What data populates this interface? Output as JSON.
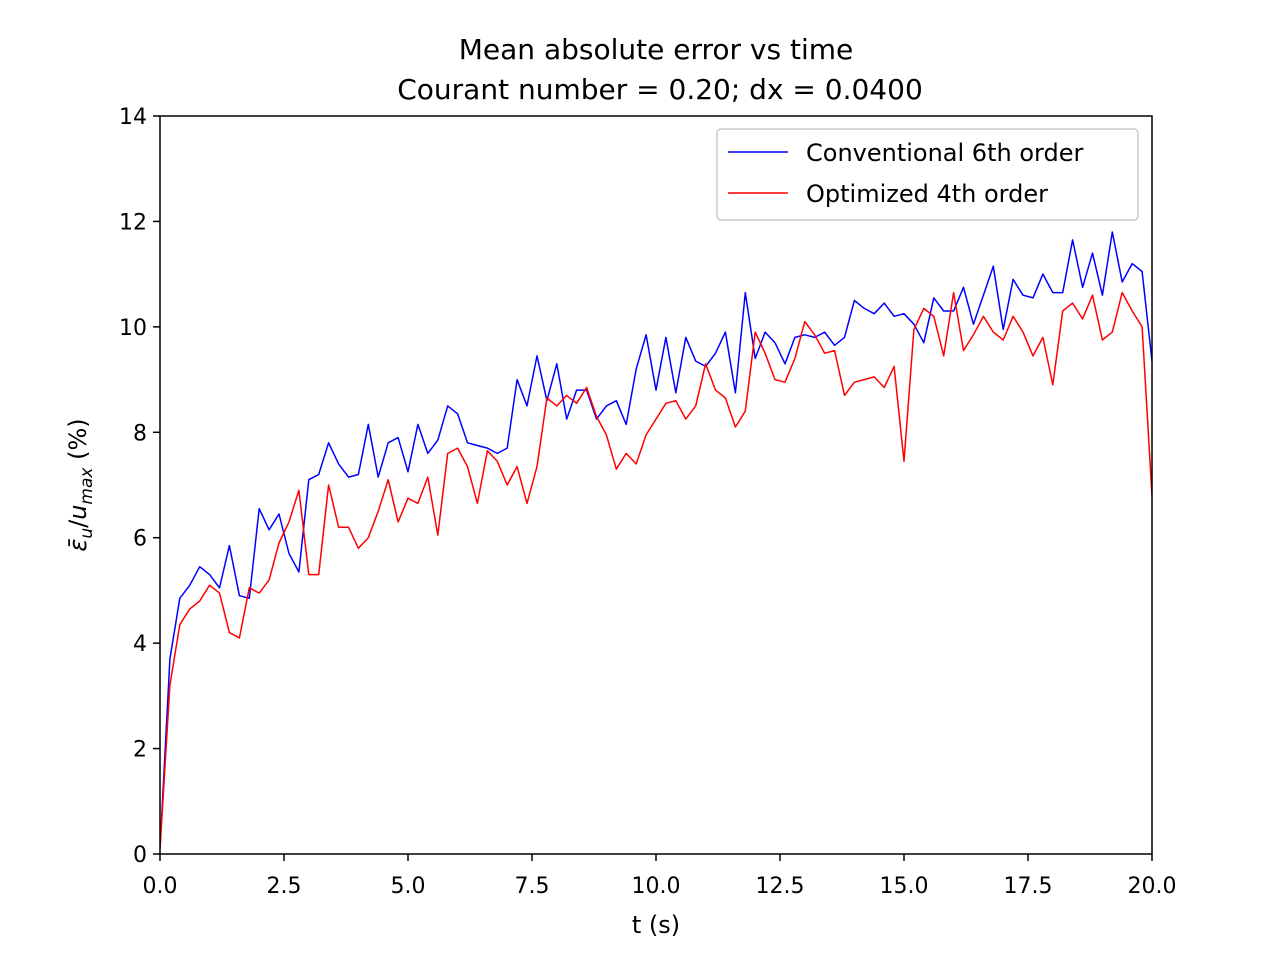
{
  "chart_data": {
    "type": "line",
    "title": "Mean absolute error vs time",
    "subtitle": "Courant number = 0.20; dx = 0.0400",
    "xlabel": "t (s)",
    "ylabel": "ε̄u/umax (%)",
    "ylabel_parts": {
      "eps": "ε̄",
      "sub_u": "u",
      "slash": "/",
      "u": "u",
      "sub_max": "max",
      "unit": " (%)"
    },
    "xlim": [
      0,
      20
    ],
    "ylim": [
      0,
      14
    ],
    "xticks": [
      0,
      2.5,
      5,
      7.5,
      10,
      12.5,
      15,
      17.5,
      20
    ],
    "xtick_labels": [
      "0.0",
      "2.5",
      "5.0",
      "7.5",
      "10.0",
      "12.5",
      "15.0",
      "17.5",
      "20.0"
    ],
    "yticks": [
      0,
      2,
      4,
      6,
      8,
      10,
      12,
      14
    ],
    "ytick_labels": [
      "0",
      "2",
      "4",
      "6",
      "8",
      "10",
      "12",
      "14"
    ],
    "grid": false,
    "legend_position": "top-right",
    "series": [
      {
        "name": "Conventional 6th order",
        "color": "#0000ff",
        "x": [
          0,
          0.2,
          0.4,
          0.6,
          0.8,
          1.0,
          1.2,
          1.4,
          1.6,
          1.8,
          2.0,
          2.2,
          2.4,
          2.6,
          2.8,
          3.0,
          3.2,
          3.4,
          3.6,
          3.8,
          4.0,
          4.2,
          4.4,
          4.6,
          4.8,
          5.0,
          5.2,
          5.4,
          5.6,
          5.8,
          6.0,
          6.2,
          6.4,
          6.6,
          6.8,
          7.0,
          7.2,
          7.4,
          7.6,
          7.8,
          8.0,
          8.2,
          8.4,
          8.6,
          8.8,
          9.0,
          9.2,
          9.4,
          9.6,
          9.8,
          10.0,
          10.2,
          10.4,
          10.6,
          10.8,
          11.0,
          11.2,
          11.4,
          11.6,
          11.8,
          12.0,
          12.2,
          12.4,
          12.6,
          12.8,
          13.0,
          13.2,
          13.4,
          13.6,
          13.8,
          14.0,
          14.2,
          14.4,
          14.6,
          14.8,
          15.0,
          15.2,
          15.4,
          15.6,
          15.8,
          16.0,
          16.2,
          16.4,
          16.6,
          16.8,
          17.0,
          17.2,
          17.4,
          17.6,
          17.8,
          18.0,
          18.2,
          18.4,
          18.6,
          18.8,
          19.0,
          19.2,
          19.4,
          19.6,
          19.8,
          20.0
        ],
        "y": [
          0.1,
          3.7,
          4.85,
          5.1,
          5.45,
          5.3,
          5.05,
          5.85,
          4.9,
          4.85,
          6.55,
          6.15,
          6.45,
          5.7,
          5.35,
          7.1,
          7.2,
          7.8,
          7.4,
          7.15,
          7.2,
          8.15,
          7.15,
          7.8,
          7.9,
          7.25,
          8.15,
          7.6,
          7.85,
          8.5,
          8.35,
          7.8,
          7.75,
          7.7,
          7.6,
          7.7,
          9.0,
          8.5,
          9.45,
          8.6,
          9.3,
          8.25,
          8.8,
          8.8,
          8.25,
          8.5,
          8.6,
          8.15,
          9.2,
          9.85,
          8.8,
          9.8,
          8.75,
          9.8,
          9.35,
          9.25,
          9.5,
          9.9,
          8.75,
          10.65,
          9.4,
          9.9,
          9.7,
          9.3,
          9.8,
          9.85,
          9.8,
          9.9,
          9.65,
          9.8,
          10.5,
          10.35,
          10.25,
          10.45,
          10.2,
          10.25,
          10.05,
          9.7,
          10.55,
          10.3,
          10.3,
          10.75,
          10.05,
          10.6,
          11.15,
          9.95,
          10.9,
          10.6,
          10.55,
          11.0,
          10.65,
          10.65,
          11.65,
          10.75,
          11.4,
          10.6,
          11.8,
          10.85,
          11.2,
          11.05,
          9.35
        ]
      },
      {
        "name": "Optimized 4th order",
        "color": "#ff0000",
        "x": [
          0,
          0.2,
          0.4,
          0.6,
          0.8,
          1.0,
          1.2,
          1.4,
          1.6,
          1.8,
          2.0,
          2.2,
          2.4,
          2.6,
          2.8,
          3.0,
          3.2,
          3.4,
          3.6,
          3.8,
          4.0,
          4.2,
          4.4,
          4.6,
          4.8,
          5.0,
          5.2,
          5.4,
          5.6,
          5.8,
          6.0,
          6.2,
          6.4,
          6.6,
          6.8,
          7.0,
          7.2,
          7.4,
          7.6,
          7.8,
          8.0,
          8.2,
          8.4,
          8.6,
          8.8,
          9.0,
          9.2,
          9.4,
          9.6,
          9.8,
          10.0,
          10.2,
          10.4,
          10.6,
          10.8,
          11.0,
          11.2,
          11.4,
          11.6,
          11.8,
          12.0,
          12.2,
          12.4,
          12.6,
          12.8,
          13.0,
          13.2,
          13.4,
          13.6,
          13.8,
          14.0,
          14.2,
          14.4,
          14.6,
          14.8,
          15.0,
          15.2,
          15.4,
          15.6,
          15.8,
          16.0,
          16.2,
          16.4,
          16.6,
          16.8,
          17.0,
          17.2,
          17.4,
          17.6,
          17.8,
          18.0,
          18.2,
          18.4,
          18.6,
          18.8,
          19.0,
          19.2,
          19.4,
          19.6,
          19.8,
          20.0
        ],
        "y": [
          0.1,
          3.2,
          4.35,
          4.65,
          4.8,
          5.1,
          4.95,
          4.2,
          4.1,
          5.05,
          4.95,
          5.2,
          5.9,
          6.3,
          6.9,
          5.3,
          5.3,
          7.0,
          6.2,
          6.2,
          5.8,
          6.0,
          6.5,
          7.1,
          6.3,
          6.75,
          6.65,
          7.15,
          6.05,
          7.6,
          7.7,
          7.35,
          6.65,
          7.65,
          7.45,
          7.0,
          7.35,
          6.65,
          7.35,
          8.65,
          8.5,
          8.7,
          8.55,
          8.85,
          8.3,
          7.95,
          7.3,
          7.6,
          7.4,
          7.95,
          8.25,
          8.55,
          8.6,
          8.25,
          8.5,
          9.3,
          8.8,
          8.65,
          8.1,
          8.4,
          9.9,
          9.5,
          9.0,
          8.95,
          9.4,
          10.1,
          9.85,
          9.5,
          9.55,
          8.7,
          8.95,
          9.0,
          9.05,
          8.85,
          9.25,
          7.45,
          9.95,
          10.35,
          10.2,
          9.45,
          10.65,
          9.55,
          9.85,
          10.2,
          9.9,
          9.75,
          10.2,
          9.9,
          9.45,
          9.8,
          8.9,
          10.3,
          10.45,
          10.15,
          10.6,
          9.75,
          9.9,
          10.65,
          10.3,
          10.0,
          6.8
        ]
      }
    ]
  }
}
